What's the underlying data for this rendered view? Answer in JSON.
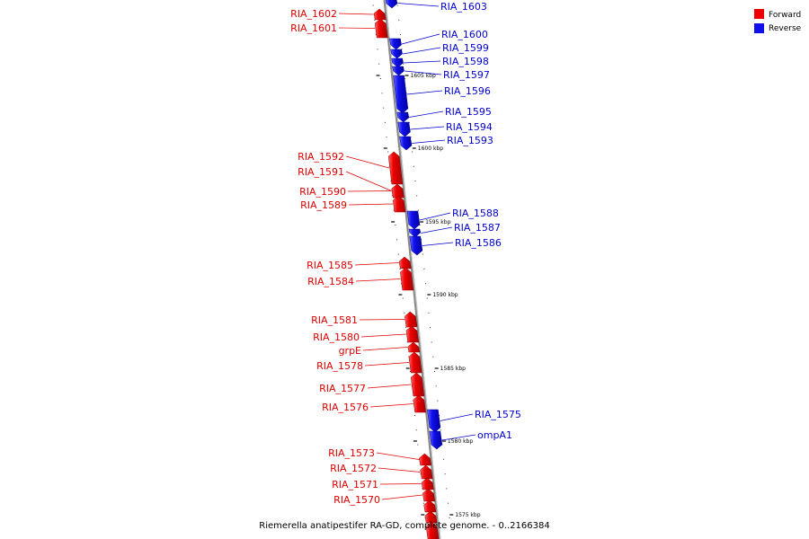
{
  "caption": "Riemerella anatipestifer RA-GD, complete genome. - 0..2166384",
  "legend": [
    {
      "label": "Forward",
      "color": "#ee0000"
    },
    {
      "label": "Reverse",
      "color": "#1010ee"
    }
  ],
  "kbp_labels": [
    "1575 kbp",
    "1580 kbp",
    "1585 kbp",
    "1590 kbp",
    "1595 kbp",
    "1600 kbp",
    "1605 kbp"
  ],
  "genes_forward": [
    "RIA_1602",
    "RIA_1601",
    "RIA_1592",
    "RIA_1591",
    "RIA_1590",
    "RIA_1589",
    "RIA_1585",
    "RIA_1584",
    "RIA_1581",
    "RIA_1580",
    "grpE",
    "RIA_1578",
    "RIA_1577",
    "RIA_1576",
    "RIA_1573",
    "RIA_1572",
    "RIA_1571",
    "RIA_1570"
  ],
  "genes_reverse": [
    "RIA_1603",
    "RIA_1600",
    "RIA_1599",
    "RIA_1598",
    "RIA_1597",
    "RIA_1596",
    "RIA_1595",
    "RIA_1594",
    "RIA_1593",
    "RIA_1588",
    "RIA_1587",
    "RIA_1586",
    "RIA_1575",
    "ompA1"
  ]
}
